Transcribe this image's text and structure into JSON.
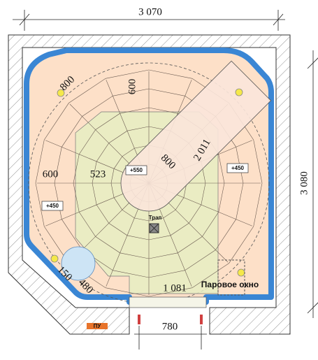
{
  "dimensions": {
    "overall_width": "3 070",
    "overall_depth": "3 080",
    "door_width": "780"
  },
  "labels": {
    "corner_radius": "800",
    "top_offset": "600",
    "bench_length": "2 011",
    "bench_width": "800",
    "bench_level": "+550",
    "right_level": "+450",
    "left_offset": "600",
    "center_radius": "523",
    "left_level": "+450",
    "drain": "Трап",
    "corner_gap": "150",
    "corner_circle": "480",
    "bottom_length": "1 081",
    "steam_window": "Паровое окно",
    "control_panel": "ПУ"
  }
}
